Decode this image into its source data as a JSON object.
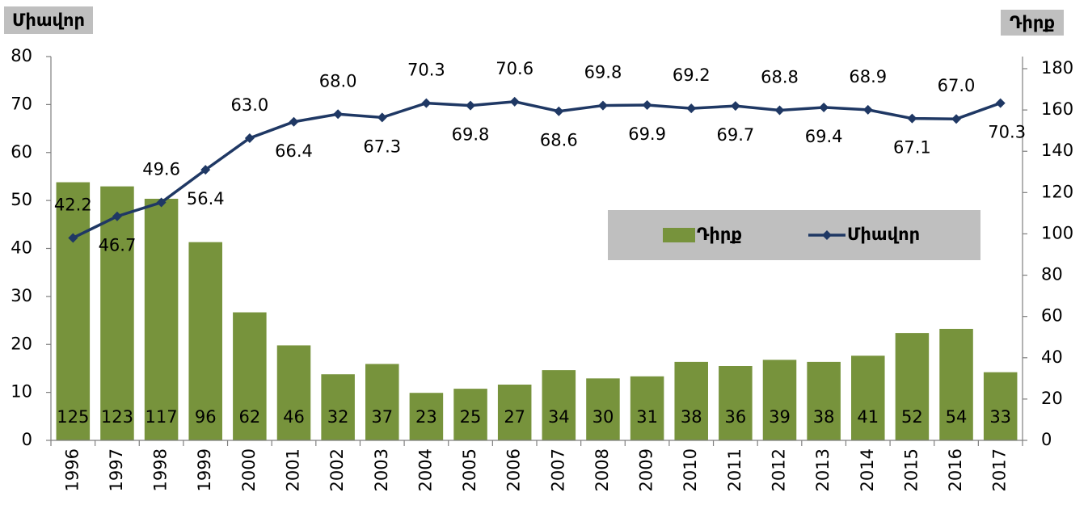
{
  "chart_data": {
    "type": "bar_line",
    "y_label": "Միավոր",
    "y2_label": "Դիրք",
    "categories": [
      "1996",
      "1997",
      "1998",
      "1999",
      "2000",
      "2001",
      "2002",
      "2003",
      "2004",
      "2005",
      "2006",
      "2007",
      "2008",
      "2009",
      "2010",
      "2011",
      "2012",
      "2013",
      "2014",
      "2015",
      "2016",
      "2017"
    ],
    "series": [
      {
        "name": "Դիրք",
        "type": "bar",
        "axis": "y2",
        "color": "#77933c",
        "values": [
          125,
          123,
          117,
          96,
          62,
          46,
          32,
          37,
          23,
          25,
          27,
          34,
          30,
          31,
          38,
          36,
          39,
          38,
          41,
          52,
          54,
          33
        ]
      },
      {
        "name": "Միավոր",
        "type": "line",
        "axis": "y",
        "color": "#1f3864",
        "values": [
          42.2,
          46.7,
          49.6,
          56.4,
          63.0,
          66.4,
          68.0,
          67.3,
          70.3,
          69.8,
          70.6,
          68.6,
          69.8,
          69.9,
          69.2,
          69.7,
          68.8,
          69.4,
          68.9,
          67.1,
          67.0,
          70.3
        ],
        "value_labels": [
          "42.2",
          "46.7",
          "49.6",
          "56.4",
          "63.0",
          "66.4",
          "68.0",
          "67.3",
          "70.3",
          "69.8",
          "70.6",
          "68.6",
          "69.8",
          "69.9",
          "69.2",
          "69.7",
          "68.8",
          "69.4",
          "68.9",
          "67.1",
          "67.0",
          "70.3"
        ]
      }
    ],
    "ylim": [
      0,
      80
    ],
    "yticks": [
      0,
      10,
      20,
      30,
      40,
      50,
      60,
      70,
      80
    ],
    "y2lim": [
      0,
      180
    ],
    "y2ticks": [
      0,
      20,
      40,
      60,
      80,
      100,
      120,
      140,
      160,
      180
    ],
    "legend": "inside"
  }
}
